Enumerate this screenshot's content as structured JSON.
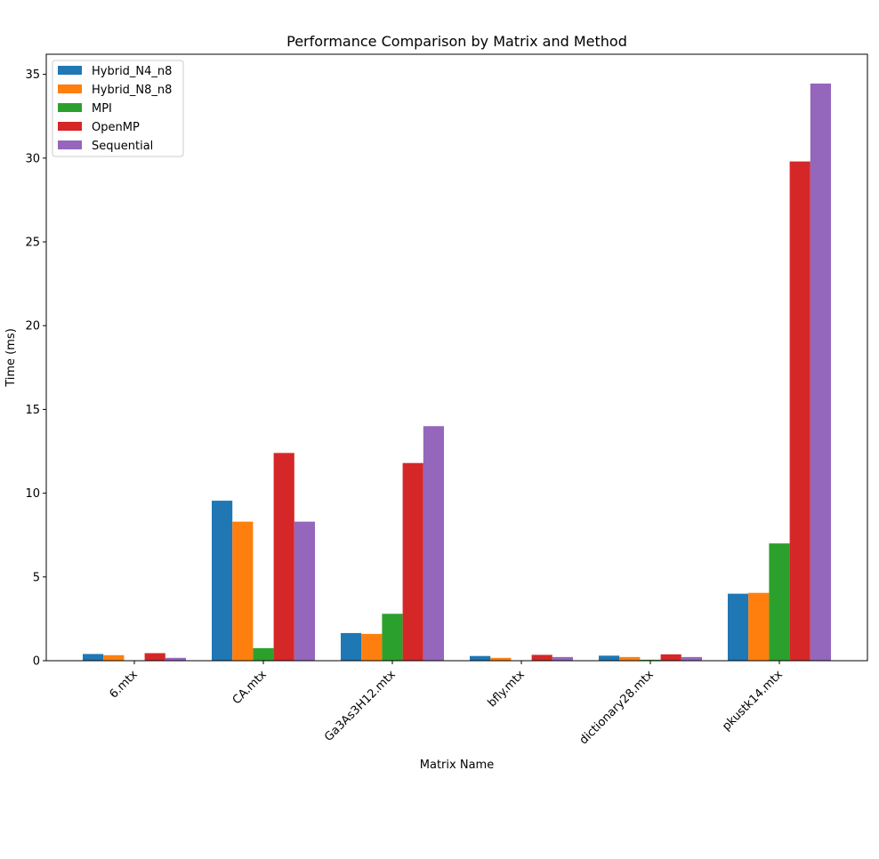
{
  "chart_data": {
    "type": "bar",
    "title": "Performance Comparison by Matrix and Method",
    "xlabel": "Matrix Name",
    "ylabel": "Time (ms)",
    "categories": [
      "6.mtx",
      "CA.mtx",
      "Ga3As3H12.mtx",
      "bfly.mtx",
      "dictionary28.mtx",
      "pkustk14.mtx"
    ],
    "ylim": [
      0,
      36.2
    ],
    "yticks": [
      0,
      5,
      10,
      15,
      20,
      25,
      30,
      35
    ],
    "grid": false,
    "legend_position": "top-left",
    "series": [
      {
        "name": "Hybrid_N4_n8",
        "color": "#1f77b4",
        "values": [
          0.4,
          9.55,
          1.65,
          0.28,
          0.3,
          4.0
        ]
      },
      {
        "name": "Hybrid_N8_n8",
        "color": "#ff7f0e",
        "values": [
          0.33,
          8.3,
          1.6,
          0.17,
          0.22,
          4.05
        ]
      },
      {
        "name": "MPI",
        "color": "#2ca02c",
        "values": [
          0.01,
          0.75,
          2.8,
          0.02,
          0.06,
          7.0
        ]
      },
      {
        "name": "OpenMP",
        "color": "#d62728",
        "values": [
          0.45,
          12.4,
          11.8,
          0.35,
          0.38,
          29.8
        ]
      },
      {
        "name": "Sequential",
        "color": "#9467bd",
        "values": [
          0.17,
          8.3,
          14.0,
          0.22,
          0.22,
          34.45
        ]
      }
    ]
  }
}
